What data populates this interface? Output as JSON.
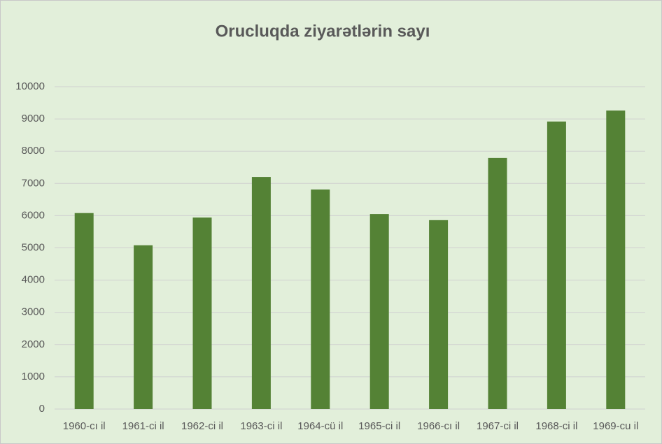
{
  "chart_data": {
    "type": "bar",
    "title": "Orucluqda ziyarətlərin sayı",
    "categories": [
      "1960-cı il",
      "1961-ci il",
      "1962-ci il",
      "1963-ci il",
      "1964-cü il",
      "1965-ci il",
      "1966-cı il",
      "1967-ci il",
      "1968-ci il",
      "1969-cu il"
    ],
    "values": [
      6080,
      5080,
      5940,
      7200,
      6810,
      6050,
      5860,
      7790,
      8920,
      9260
    ],
    "color": "#548235",
    "ylim": [
      0,
      10000
    ],
    "yticks": [
      0,
      1000,
      2000,
      3000,
      4000,
      5000,
      6000,
      7000,
      8000,
      9000,
      10000
    ],
    "grid": true
  }
}
